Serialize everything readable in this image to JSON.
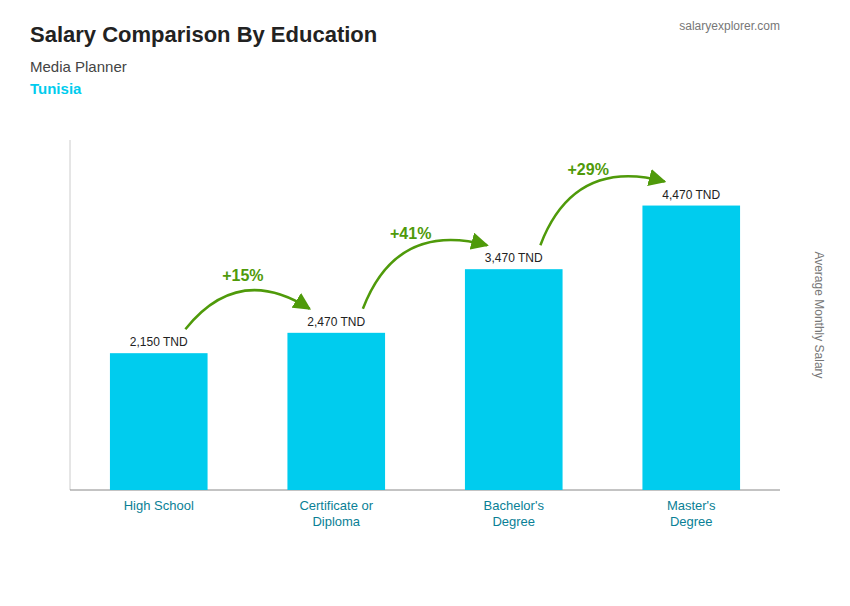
{
  "chart_data": {
    "type": "bar",
    "title": "Salary Comparison By Education",
    "subtitle": [
      "Media Planner",
      "Tunisia"
    ],
    "watermark": "salaryexplorer.com",
    "ylabel": "Average Monthly Salary",
    "categories": [
      "High School",
      "Certificate or\nDiploma",
      "Bachelor's\nDegree",
      "Master's\nDegree"
    ],
    "values": [
      2150,
      2470,
      3470,
      4470
    ],
    "value_labels": [
      "2,150 TND",
      "2,470 TND",
      "3,470 TND",
      "4,470 TND"
    ],
    "annotations": [
      "+15%",
      "+41%",
      "+29%"
    ],
    "color": "#00ccee",
    "ylim": [
      0,
      5500
    ],
    "data_labels": true,
    "tick_labels": false,
    "grid": false
  }
}
